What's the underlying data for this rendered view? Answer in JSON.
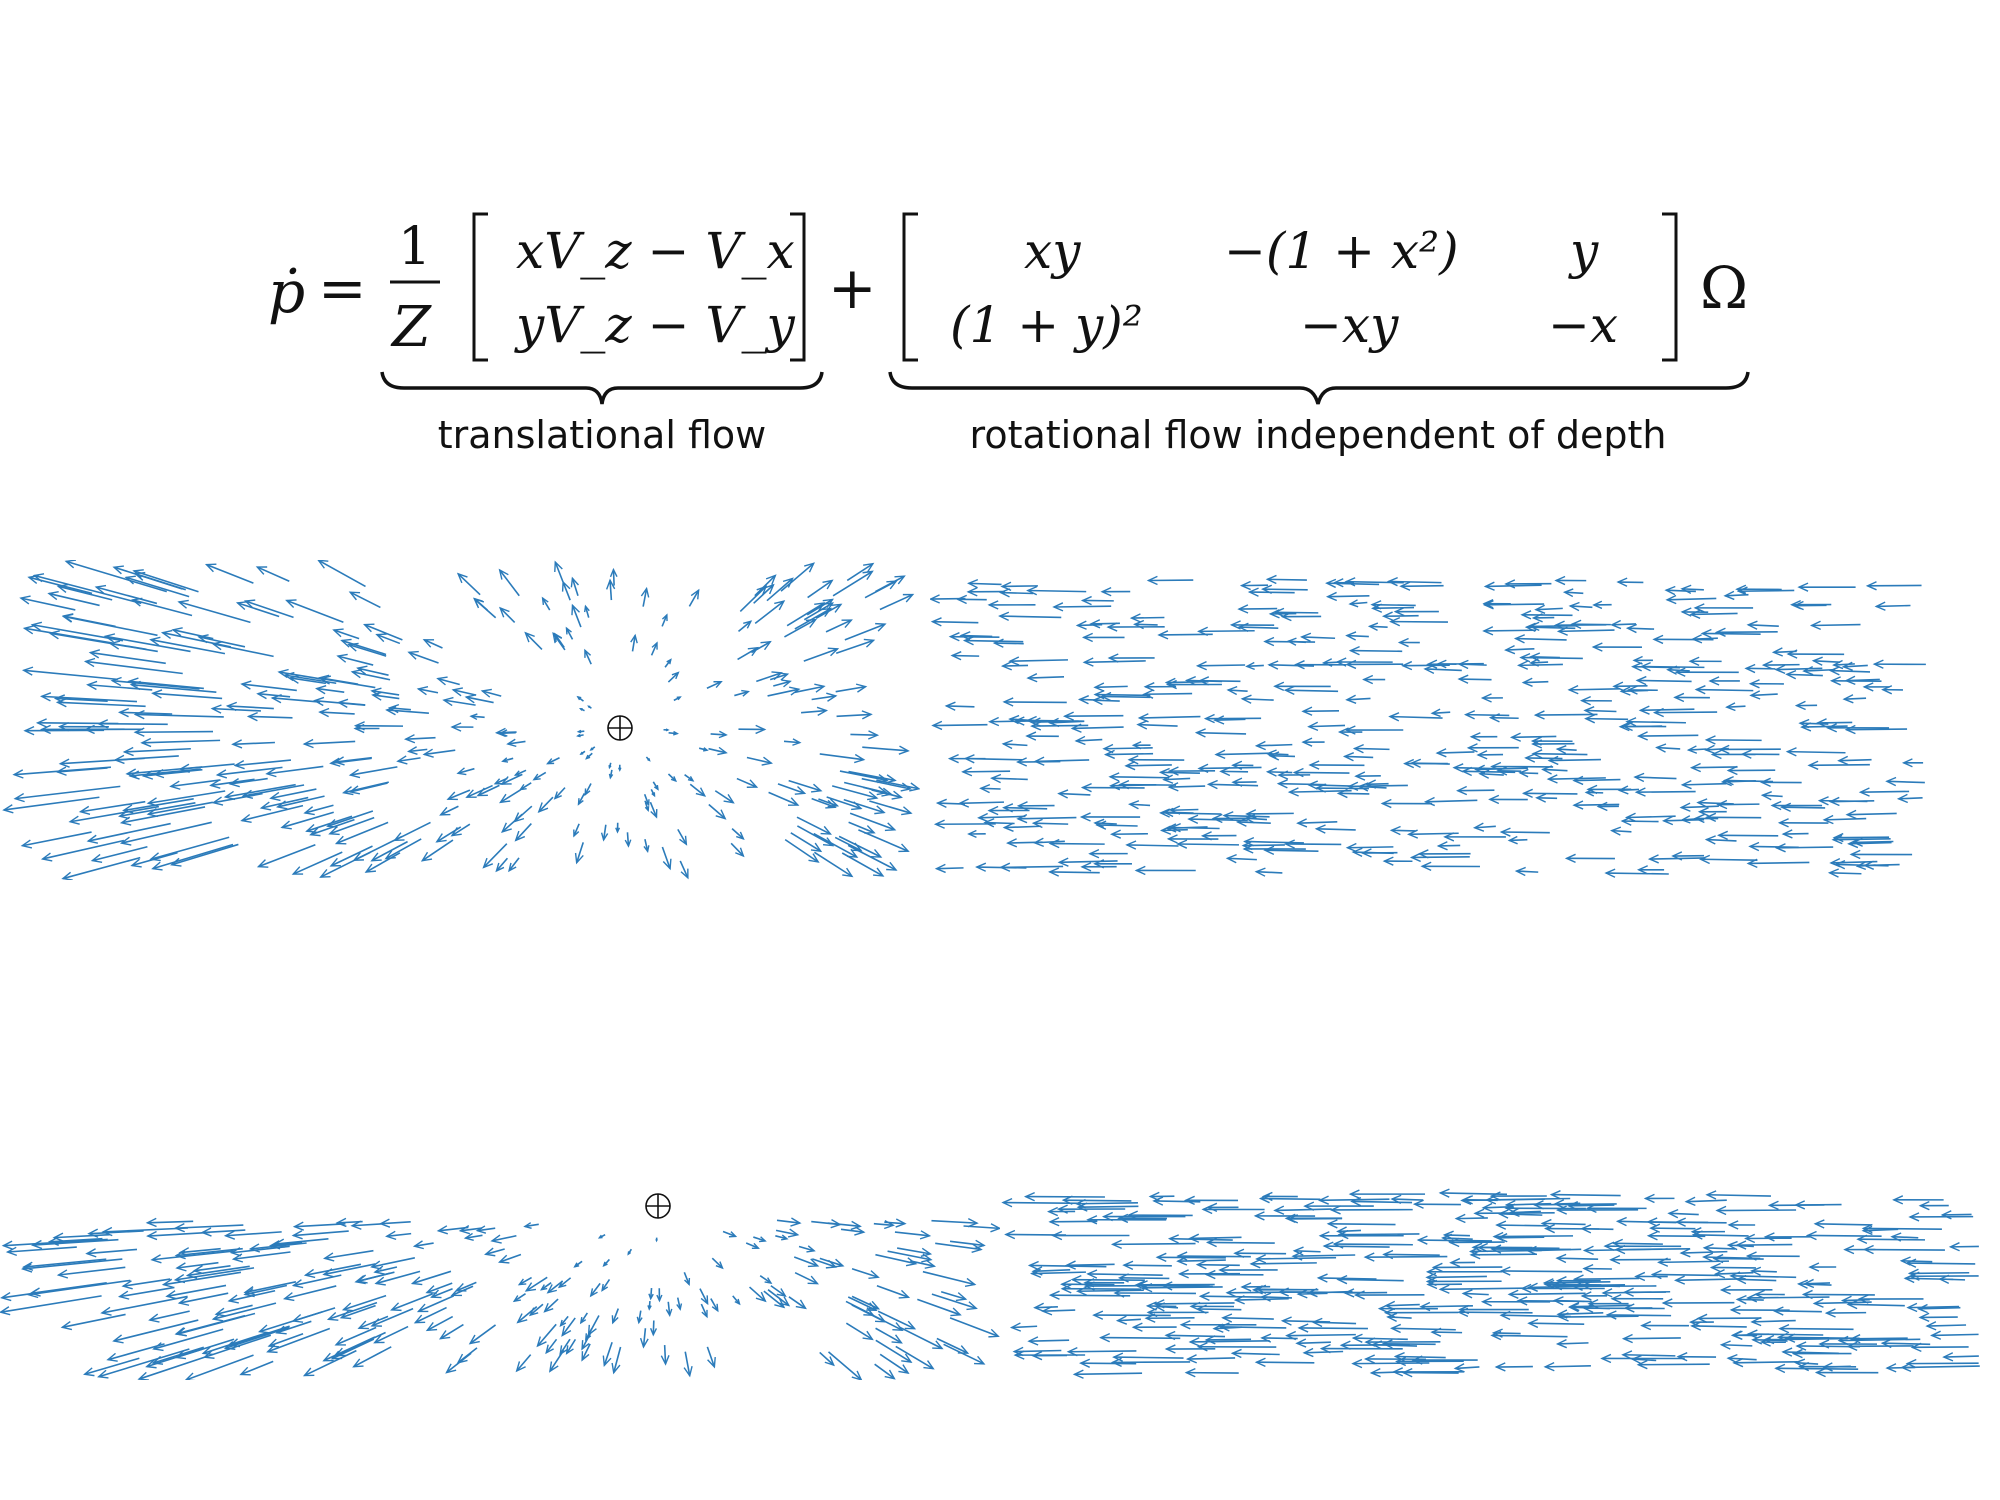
{
  "equation": {
    "lhs": "ṗ",
    "equals": "=",
    "frac_num": "1",
    "frac_den": "Z",
    "trans_r1": "xV_z − V_x",
    "trans_r2": "yV_z − V_y",
    "plus": "+",
    "rot_r1": [
      "xy",
      "−(1 + x²)",
      "y"
    ],
    "rot_r2": [
      "(1 + y)²",
      "−xy",
      "−x"
    ],
    "omega": "Ω",
    "label_translational": "translational flow",
    "label_rotational": "rotational flow independent of depth"
  },
  "colors": {
    "arrow": "#2b7bba",
    "ink": "#111111"
  },
  "icons": {
    "focus_of_expansion": "circle-plus-icon"
  }
}
